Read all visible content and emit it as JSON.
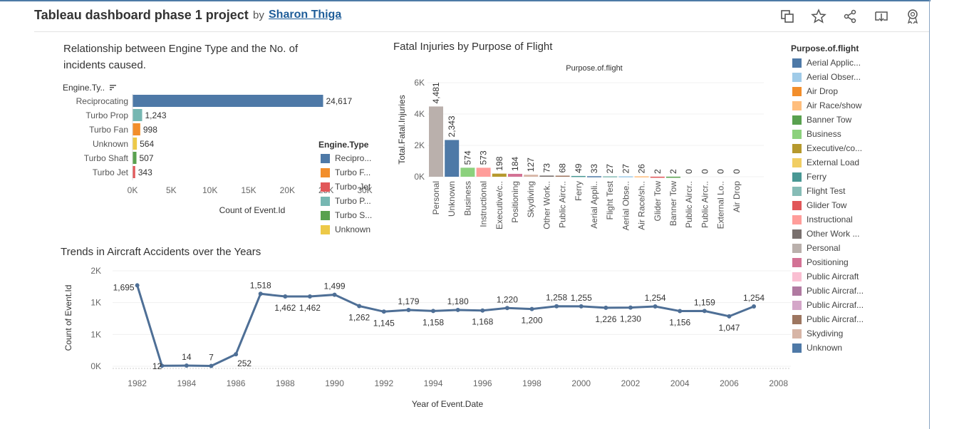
{
  "header": {
    "title": "Tableau dashboard phase 1 project",
    "by": "by",
    "author": "Sharon Thiga"
  },
  "toolbar": {
    "icons": [
      "copy-icon",
      "star-icon",
      "share-icon",
      "download-icon",
      "badge-icon"
    ]
  },
  "engine_chart": {
    "title_line1": "Relationship between Engine Type and the No. of",
    "title_line2": "incidents caused.",
    "row_header": "Engine.Ty..",
    "xlabel": "Count of Event.Id",
    "x_ticks": [
      "0K",
      "5K",
      "10K",
      "15K",
      "20K",
      "25K",
      "30K"
    ],
    "legend_title": "Engine.Type",
    "legend": [
      {
        "label": "Recipro...",
        "color": "#4e79a7"
      },
      {
        "label": "Turbo F...",
        "color": "#f28e2b"
      },
      {
        "label": "Turbo Jet",
        "color": "#e15759"
      },
      {
        "label": "Turbo P...",
        "color": "#76b7b2"
      },
      {
        "label": "Turbo S...",
        "color": "#59a14f"
      },
      {
        "label": "Unknown",
        "color": "#edc948"
      }
    ]
  },
  "purpose_chart": {
    "title": "Fatal Injuries by Purpose of Flight",
    "header": "Purpose.of.flight",
    "ylabel": "Total.Fatal.Injuries",
    "y_ticks": [
      "0K",
      "2K",
      "4K",
      "6K"
    ]
  },
  "trend_chart": {
    "title": "Trends in Aircraft Accidents over the Years",
    "ylabel": "Count of Event.Id",
    "xlabel": "Year of Event.Date",
    "y_ticks": [
      "0K",
      "1K",
      "1K",
      "2K"
    ],
    "x_ticks": [
      "1982",
      "1984",
      "1986",
      "1988",
      "1990",
      "1992",
      "1994",
      "1996",
      "1998",
      "2000",
      "2002",
      "2004",
      "2006",
      "2008"
    ]
  },
  "purpose_legend": {
    "title": "Purpose.of.flight",
    "items": [
      {
        "label": "Aerial Applic...",
        "color": "#4e79a7"
      },
      {
        "label": "Aerial Obser...",
        "color": "#a0cbe8"
      },
      {
        "label": "Air Drop",
        "color": "#f28e2b"
      },
      {
        "label": "Air Race/show",
        "color": "#ffbe7d"
      },
      {
        "label": "Banner Tow",
        "color": "#59a14f"
      },
      {
        "label": "Business",
        "color": "#8cd17d"
      },
      {
        "label": "Executive/co...",
        "color": "#b6992d"
      },
      {
        "label": "External Load",
        "color": "#f1ce63"
      },
      {
        "label": "Ferry",
        "color": "#499894"
      },
      {
        "label": "Flight Test",
        "color": "#86bcb6"
      },
      {
        "label": "Glider Tow",
        "color": "#e15759"
      },
      {
        "label": "Instructional",
        "color": "#ff9d9a"
      },
      {
        "label": "Other Work ...",
        "color": "#79706e"
      },
      {
        "label": "Personal",
        "color": "#bab0ac"
      },
      {
        "label": "Positioning",
        "color": "#d37295"
      },
      {
        "label": "Public Aircraft",
        "color": "#fabfd2"
      },
      {
        "label": "Public Aircraf...",
        "color": "#b07aa1"
      },
      {
        "label": "Public Aircraf...",
        "color": "#d4a6c8"
      },
      {
        "label": "Public Aircraf...",
        "color": "#9d7660"
      },
      {
        "label": "Skydiving",
        "color": "#d7b5a6"
      },
      {
        "label": "Unknown",
        "color": "#4e79a7"
      }
    ]
  },
  "chart_data": [
    {
      "type": "bar",
      "orientation": "horizontal",
      "title": "Relationship between Engine Type and the No. of incidents caused.",
      "xlabel": "Count of Event.Id",
      "ylabel": "Engine.Ty..",
      "xlim": [
        0,
        30000
      ],
      "categories": [
        "Reciprocating",
        "Turbo Prop",
        "Turbo Fan",
        "Unknown",
        "Turbo Shaft",
        "Turbo Jet"
      ],
      "values": [
        24617,
        1243,
        998,
        564,
        507,
        343
      ],
      "value_labels": [
        "24,617",
        "1,243",
        "998",
        "564",
        "507",
        "343"
      ],
      "colors": [
        "#4e79a7",
        "#76b7b2",
        "#f28e2b",
        "#edc948",
        "#59a14f",
        "#e15759"
      ]
    },
    {
      "type": "bar",
      "title": "Fatal Injuries by Purpose of Flight",
      "ylabel": "Total.Fatal.Injuries",
      "ylim": [
        0,
        6000
      ],
      "categories": [
        "Personal",
        "Unknown",
        "Business",
        "Instructional",
        "Executive/c..",
        "Positioning",
        "Skydiving",
        "Other Work..",
        "Public Aircr..",
        "Ferry",
        "Aerial Appli..",
        "Flight Test",
        "Aerial Obse..",
        "Air Race/sh..",
        "Glider Tow",
        "Banner Tow",
        "Public Aircr..",
        "Public Aircr..",
        "External Lo..",
        "Air Drop"
      ],
      "values": [
        4481,
        2343,
        574,
        573,
        198,
        184,
        127,
        73,
        68,
        49,
        33,
        27,
        27,
        26,
        2,
        2,
        0,
        0,
        0,
        0
      ],
      "value_labels": [
        "4,481",
        "2,343",
        "574",
        "573",
        "198",
        "184",
        "127",
        "73",
        "68",
        "49",
        "33",
        "27",
        "27",
        "26",
        "2",
        "2",
        "0",
        "0",
        "0",
        "0"
      ],
      "colors": [
        "#bab0ac",
        "#4e79a7",
        "#8cd17d",
        "#ff9d9a",
        "#b6992d",
        "#d37295",
        "#d7b5a6",
        "#79706e",
        "#9d7660",
        "#499894",
        "#4e79a7",
        "#86bcb6",
        "#a0cbe8",
        "#ffbe7d",
        "#e15759",
        "#59a14f",
        "#b07aa1",
        "#d4a6c8",
        "#f1ce63",
        "#f28e2b"
      ]
    },
    {
      "type": "line",
      "title": "Trends in Aircraft Accidents over the Years",
      "xlabel": "Year of Event.Date",
      "ylabel": "Count of Event.Id",
      "xlim": [
        1981,
        2008.5
      ],
      "ylim": [
        0,
        2000
      ],
      "x": [
        1982,
        1983,
        1984,
        1985,
        1986,
        1987,
        1988,
        1989,
        1990,
        1991,
        1992,
        1993,
        1994,
        1995,
        1996,
        1997,
        1998,
        1999,
        2000,
        2001,
        2002,
        2003,
        2004,
        2005,
        2006,
        2007
      ],
      "y": [
        1695,
        12,
        14,
        7,
        252,
        1518,
        1462,
        1462,
        1499,
        1262,
        1145,
        1179,
        1158,
        1180,
        1168,
        1220,
        1200,
        1258,
        1255,
        1226,
        1230,
        1254,
        1156,
        1159,
        1047,
        1254
      ],
      "value_labels": [
        "1,695",
        "12",
        "14",
        "7",
        "252",
        "1,518",
        "1,462",
        "1,462",
        "1,499",
        "1,262",
        "1,145",
        "1,179",
        "1,158",
        "1,180",
        "1,168",
        "1,220",
        "1,200",
        "1,258",
        "1,255",
        "1,226",
        "1,230",
        "1,254",
        "1,156",
        "1,159",
        "1,047",
        "1,254"
      ],
      "color": "#4e6f96"
    }
  ]
}
